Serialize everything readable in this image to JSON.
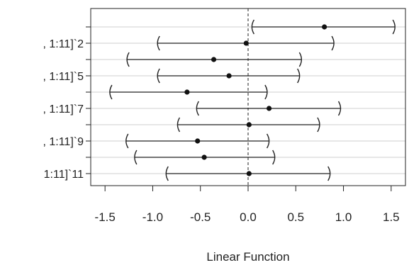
{
  "chart_data": {
    "type": "scatter",
    "subtype": "interval-dot-plot",
    "title": "",
    "xlabel": "Linear Function",
    "ylabel": "",
    "xlim": [
      -1.65,
      1.65
    ],
    "x_ticks": [
      -1.5,
      -1.0,
      -0.5,
      0.0,
      0.5,
      1.0,
      1.5
    ],
    "x_tick_labels": [
      "-1.5",
      "-1.0",
      "-0.5",
      "0.0",
      "0.5",
      "1.0",
      "1.5"
    ],
    "reference_line_x": 0.0,
    "grid": "horizontal",
    "y_tick_labels_visible": [
      ", 1:11]`2",
      ", 1:11]`5",
      ", 1:11]`7",
      ", 1:11]`9",
      "1:11]`11"
    ],
    "rows": [
      {
        "label": "",
        "estimate": 0.8,
        "lower": 0.04,
        "upper": 1.54
      },
      {
        "label": ", 1:11]`2",
        "estimate": -0.02,
        "lower": -0.95,
        "upper": 0.9
      },
      {
        "label": "",
        "estimate": -0.36,
        "lower": -1.27,
        "upper": 0.56
      },
      {
        "label": ", 1:11]`5",
        "estimate": -0.2,
        "lower": -0.95,
        "upper": 0.54
      },
      {
        "label": "",
        "estimate": -0.64,
        "lower": -1.45,
        "upper": 0.2
      },
      {
        "label": ", 1:11]`7",
        "estimate": 0.22,
        "lower": -0.54,
        "upper": 0.97
      },
      {
        "label": "",
        "estimate": 0.01,
        "lower": -0.74,
        "upper": 0.75
      },
      {
        "label": ", 1:11]`9",
        "estimate": -0.53,
        "lower": -1.28,
        "upper": 0.22
      },
      {
        "label": "",
        "estimate": -0.46,
        "lower": -1.19,
        "upper": 0.28
      },
      {
        "label": "1:11]`11",
        "estimate": 0.01,
        "lower": -0.86,
        "upper": 0.86
      }
    ]
  }
}
